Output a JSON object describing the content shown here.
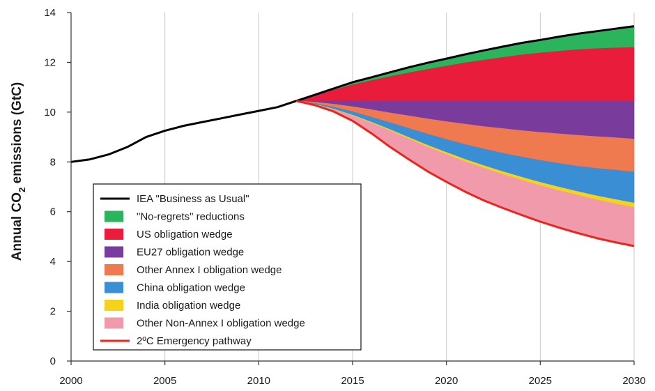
{
  "chart_data": {
    "type": "area",
    "title": "",
    "xlabel": "",
    "ylabel": "Annual CO2 emissions (GtC)",
    "ylabel_parts": {
      "pre": "Annual CO",
      "sub": "2",
      "post": " emissions (GtC)"
    },
    "xlim": [
      2000,
      2030
    ],
    "ylim": [
      0,
      14
    ],
    "x_ticks": [
      "2000",
      "2005",
      "2010",
      "2015",
      "2020",
      "2025",
      "2030"
    ],
    "y_ticks": [
      "0",
      "2",
      "4",
      "6",
      "8",
      "10",
      "12",
      "14"
    ],
    "grid": "vertical lines at x ticks",
    "legend_position": "lower-left",
    "x": [
      2012,
      2013,
      2014,
      2015,
      2016,
      2017,
      2018,
      2019,
      2020,
      2021,
      2022,
      2023,
      2024,
      2025,
      2026,
      2027,
      2028,
      2029,
      2030
    ],
    "series": [
      {
        "name": "IEA \"Business as Usual\"",
        "kind": "line",
        "color": "#000000",
        "x": [
          2000,
          2001,
          2002,
          2003,
          2004,
          2005,
          2006,
          2007,
          2008,
          2009,
          2010,
          2011,
          2012,
          2013,
          2014,
          2015,
          2016,
          2017,
          2018,
          2019,
          2020,
          2021,
          2022,
          2023,
          2024,
          2025,
          2026,
          2027,
          2028,
          2029,
          2030
        ],
        "values": [
          8.0,
          8.1,
          8.3,
          8.6,
          9.0,
          9.25,
          9.45,
          9.6,
          9.75,
          9.9,
          10.05,
          10.2,
          10.45,
          10.7,
          10.95,
          11.2,
          11.4,
          11.6,
          11.8,
          11.98,
          12.15,
          12.32,
          12.48,
          12.63,
          12.78,
          12.9,
          13.03,
          13.15,
          13.25,
          13.35,
          13.45
        ]
      },
      {
        "name": "\"No-regrets\" reductions",
        "kind": "area",
        "color": "#2bb45b",
        "upper": [
          10.45,
          10.7,
          10.95,
          11.2,
          11.4,
          11.6,
          11.8,
          11.98,
          12.15,
          12.32,
          12.48,
          12.63,
          12.78,
          12.9,
          13.03,
          13.15,
          13.25,
          13.35,
          13.45
        ],
        "lower": [
          10.45,
          10.67,
          10.89,
          11.1,
          11.27,
          11.43,
          11.58,
          11.72,
          11.85,
          11.98,
          12.09,
          12.2,
          12.3,
          12.38,
          12.45,
          12.51,
          12.55,
          12.58,
          12.6
        ]
      },
      {
        "name": "US obligation wedge",
        "kind": "area",
        "color": "#ea1c3c",
        "upper": [
          10.45,
          10.67,
          10.89,
          11.1,
          11.27,
          11.43,
          11.58,
          11.72,
          11.85,
          11.98,
          12.09,
          12.2,
          12.3,
          12.38,
          12.45,
          12.51,
          12.55,
          12.58,
          12.6
        ],
        "lower": [
          10.45,
          10.45,
          10.45,
          10.45,
          10.45,
          10.45,
          10.45,
          10.45,
          10.45,
          10.45,
          10.45,
          10.45,
          10.45,
          10.45,
          10.45,
          10.45,
          10.45,
          10.45,
          10.45
        ]
      },
      {
        "name": "EU27 obligation wedge",
        "kind": "area",
        "color": "#7a3c9c",
        "upper": [
          10.45,
          10.45,
          10.45,
          10.45,
          10.45,
          10.45,
          10.45,
          10.45,
          10.45,
          10.45,
          10.45,
          10.45,
          10.45,
          10.45,
          10.45,
          10.45,
          10.45,
          10.45,
          10.45
        ],
        "lower": [
          10.45,
          10.4,
          10.32,
          10.22,
          10.1,
          9.97,
          9.85,
          9.73,
          9.62,
          9.52,
          9.42,
          9.34,
          9.26,
          9.19,
          9.13,
          9.07,
          9.02,
          8.97,
          8.92
        ]
      },
      {
        "name": "Other Annex I obligation wedge",
        "kind": "area",
        "color": "#ef7a50",
        "upper": [
          10.45,
          10.4,
          10.32,
          10.22,
          10.1,
          9.97,
          9.85,
          9.73,
          9.62,
          9.52,
          9.42,
          9.34,
          9.26,
          9.19,
          9.13,
          9.07,
          9.02,
          8.97,
          8.92
        ],
        "lower": [
          10.45,
          10.35,
          10.2,
          10.02,
          9.8,
          9.58,
          9.35,
          9.12,
          8.9,
          8.7,
          8.52,
          8.35,
          8.2,
          8.06,
          7.94,
          7.83,
          7.74,
          7.67,
          7.6
        ]
      },
      {
        "name": "China obligation wedge",
        "kind": "area",
        "color": "#3a8ed4",
        "upper": [
          10.45,
          10.35,
          10.2,
          10.02,
          9.8,
          9.58,
          9.35,
          9.12,
          8.9,
          8.7,
          8.52,
          8.35,
          8.2,
          8.06,
          7.94,
          7.83,
          7.74,
          7.67,
          7.6
        ],
        "lower": [
          10.45,
          10.32,
          10.12,
          9.88,
          9.6,
          9.3,
          8.98,
          8.67,
          8.38,
          8.1,
          7.85,
          7.61,
          7.39,
          7.18,
          6.99,
          6.81,
          6.64,
          6.49,
          6.35
        ]
      },
      {
        "name": "India obligation wedge",
        "kind": "area",
        "color": "#f5d21c",
        "upper": [
          10.45,
          10.32,
          10.12,
          9.88,
          9.6,
          9.3,
          8.98,
          8.67,
          8.38,
          8.1,
          7.85,
          7.61,
          7.39,
          7.18,
          6.99,
          6.81,
          6.64,
          6.49,
          6.35
        ],
        "lower": [
          10.45,
          10.31,
          10.1,
          9.85,
          9.56,
          9.25,
          8.92,
          8.6,
          8.3,
          8.01,
          7.75,
          7.5,
          7.27,
          7.05,
          6.85,
          6.66,
          6.48,
          6.32,
          6.17
        ]
      },
      {
        "name": "Other Non-Annex I obligation wedge",
        "kind": "area",
        "color": "#f19aac",
        "upper": [
          10.45,
          10.31,
          10.1,
          9.85,
          9.56,
          9.25,
          8.92,
          8.6,
          8.3,
          8.01,
          7.75,
          7.5,
          7.27,
          7.05,
          6.85,
          6.66,
          6.48,
          6.32,
          6.17
        ],
        "lower": [
          10.45,
          10.28,
          10.02,
          9.65,
          9.15,
          8.6,
          8.1,
          7.62,
          7.2,
          6.8,
          6.45,
          6.15,
          5.87,
          5.6,
          5.36,
          5.14,
          4.94,
          4.77,
          4.62
        ]
      },
      {
        "name": "2ºC Emergency pathway",
        "kind": "line",
        "color": "#e8261e",
        "x": [
          2012,
          2013,
          2014,
          2015,
          2016,
          2017,
          2018,
          2019,
          2020,
          2021,
          2022,
          2023,
          2024,
          2025,
          2026,
          2027,
          2028,
          2029,
          2030
        ],
        "values": [
          10.45,
          10.28,
          10.02,
          9.65,
          9.15,
          8.6,
          8.1,
          7.62,
          7.2,
          6.8,
          6.45,
          6.15,
          5.87,
          5.6,
          5.36,
          5.14,
          4.94,
          4.77,
          4.62
        ]
      }
    ],
    "legend": [
      {
        "label": "IEA \"Business as Usual\"",
        "swatch": "line",
        "color": "#000000"
      },
      {
        "label": "\"No-regrets\" reductions",
        "swatch": "box",
        "color": "#2bb45b"
      },
      {
        "label": "US obligation wedge",
        "swatch": "box",
        "color": "#ea1c3c"
      },
      {
        "label": "EU27 obligation wedge",
        "swatch": "box",
        "color": "#7a3c9c"
      },
      {
        "label": "Other Annex I obligation wedge",
        "swatch": "box",
        "color": "#ef7a50"
      },
      {
        "label": "China obligation wedge",
        "swatch": "box",
        "color": "#3a8ed4"
      },
      {
        "label": "India obligation wedge",
        "swatch": "box",
        "color": "#f5d21c"
      },
      {
        "label": "Other Non-Annex I obligation wedge",
        "swatch": "box",
        "color": "#f19aac"
      },
      {
        "label": "2ºC Emergency pathway",
        "swatch": "line",
        "color": "#e8261e"
      }
    ]
  }
}
